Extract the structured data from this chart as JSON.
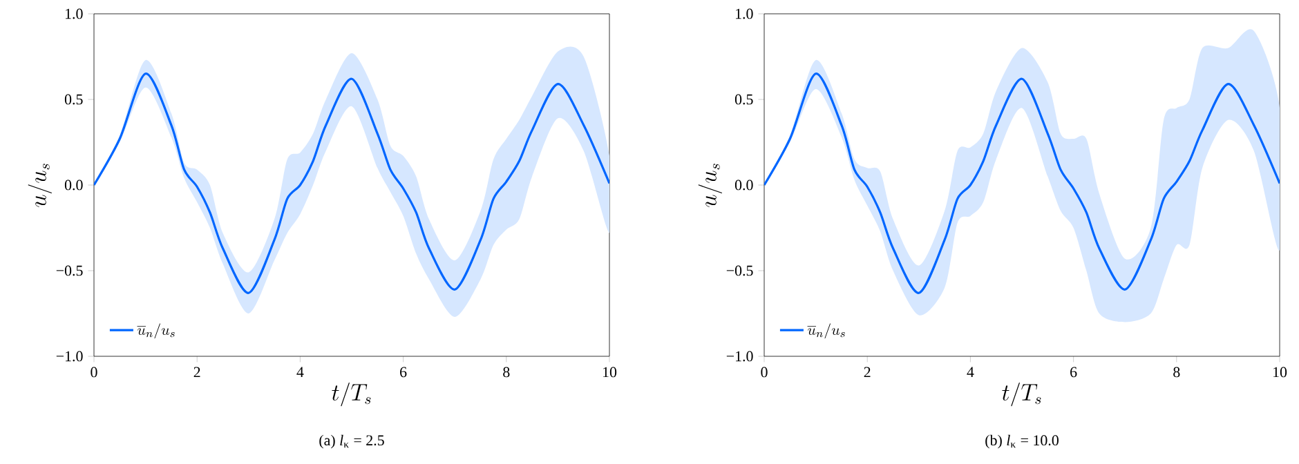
{
  "chart_data": [
    {
      "type": "line",
      "xlabel": "t/T_s",
      "ylabel": "u/u_s",
      "annotations": [
        "(a) *l*$_{κ}$ = 2.5"
      ],
      "x": [
        0,
        0.5,
        1,
        1.5,
        1.75,
        2,
        2.25,
        2.5,
        3,
        3.5,
        3.75,
        4,
        4.25,
        4.5,
        5,
        5.5,
        5.75,
        6,
        6.25,
        6.5,
        7,
        7.5,
        7.75,
        8,
        8.25,
        8.5,
        9,
        9.5,
        10
      ],
      "series": [
        {
          "name": "\\overline{u}_n/u_s",
          "color": "#0066ff",
          "values": [
            0,
            0.27,
            0.65,
            0.35,
            0.09,
            -0.01,
            -0.16,
            -0.37,
            -0.63,
            -0.32,
            -0.08,
            0.0,
            0.14,
            0.35,
            0.62,
            0.3,
            0.09,
            -0.02,
            -0.16,
            -0.37,
            -0.61,
            -0.32,
            -0.08,
            0.02,
            0.14,
            0.32,
            0.59,
            0.35,
            0.01
          ],
          "upper": [
            0,
            0.29,
            0.73,
            0.42,
            0.13,
            0.09,
            0.0,
            -0.28,
            -0.51,
            -0.2,
            0.15,
            0.19,
            0.3,
            0.5,
            0.77,
            0.5,
            0.23,
            0.17,
            0.05,
            -0.2,
            -0.44,
            -0.15,
            0.15,
            0.27,
            0.38,
            0.52,
            0.78,
            0.75,
            0.17
          ],
          "lower": [
            0,
            0.25,
            0.57,
            0.28,
            0.04,
            -0.1,
            -0.25,
            -0.46,
            -0.75,
            -0.44,
            -0.28,
            -0.17,
            0.0,
            0.2,
            0.46,
            0.1,
            -0.04,
            -0.18,
            -0.4,
            -0.55,
            -0.77,
            -0.55,
            -0.35,
            -0.26,
            -0.2,
            0.05,
            0.39,
            0.2,
            -0.28
          ]
        }
      ],
      "xlim": [
        0,
        10
      ],
      "ylim": [
        -1,
        1
      ],
      "xticks": [
        0,
        2,
        4,
        6,
        8,
        10
      ],
      "yticks": [
        {
          "value": -1,
          "label": "−1.0"
        },
        {
          "value": -0.5,
          "label": "−0.5"
        },
        {
          "value": 0,
          "label": "0.0"
        },
        {
          "value": 0.5,
          "label": "0.5"
        },
        {
          "value": 1,
          "label": "1.0"
        }
      ],
      "legend": "bottom left"
    },
    {
      "type": "line",
      "xlabel": "t/T_s",
      "ylabel": "u/u_s",
      "annotations": [
        "(b) *l*$_{κ}$ = 10.0"
      ],
      "x": [
        0,
        0.5,
        1,
        1.5,
        1.75,
        2,
        2.25,
        2.5,
        3,
        3.5,
        3.75,
        4,
        4.25,
        4.5,
        5,
        5.5,
        5.75,
        6,
        6.25,
        6.5,
        7,
        7.5,
        7.75,
        8,
        8.25,
        8.5,
        9,
        9.5,
        10
      ],
      "series": [
        {
          "name": "\\overline{u}_n/u_s",
          "color": "#0066ff",
          "values": [
            0,
            0.27,
            0.65,
            0.35,
            0.09,
            -0.01,
            -0.16,
            -0.37,
            -0.63,
            -0.32,
            -0.08,
            0.0,
            0.14,
            0.35,
            0.62,
            0.3,
            0.09,
            -0.02,
            -0.16,
            -0.37,
            -0.61,
            -0.32,
            -0.08,
            0.02,
            0.14,
            0.32,
            0.59,
            0.35,
            0.01
          ],
          "upper": [
            0,
            0.29,
            0.73,
            0.42,
            0.15,
            0.1,
            0.08,
            -0.2,
            -0.47,
            -0.15,
            0.2,
            0.22,
            0.3,
            0.55,
            0.8,
            0.6,
            0.3,
            0.27,
            0.27,
            -0.05,
            -0.43,
            -0.25,
            0.38,
            0.45,
            0.5,
            0.8,
            0.8,
            0.9,
            0.45
          ],
          "lower": [
            0,
            0.25,
            0.56,
            0.28,
            0.03,
            -0.12,
            -0.27,
            -0.5,
            -0.76,
            -0.6,
            -0.22,
            -0.18,
            -0.1,
            0.15,
            0.45,
            0.05,
            -0.15,
            -0.25,
            -0.5,
            -0.75,
            -0.8,
            -0.75,
            -0.55,
            -0.35,
            -0.35,
            0.1,
            0.38,
            0.2,
            -0.38
          ]
        }
      ],
      "xlim": [
        0,
        10
      ],
      "ylim": [
        -1,
        1
      ],
      "xticks": [
        0,
        2,
        4,
        6,
        8,
        10
      ],
      "yticks": [
        {
          "value": -1,
          "label": "−1.0"
        },
        {
          "value": -0.5,
          "label": "−0.5"
        },
        {
          "value": 0,
          "label": "0.0"
        },
        {
          "value": 0.5,
          "label": "0.5"
        },
        {
          "value": 1,
          "label": "1.0"
        }
      ],
      "legend": "bottom left"
    }
  ]
}
